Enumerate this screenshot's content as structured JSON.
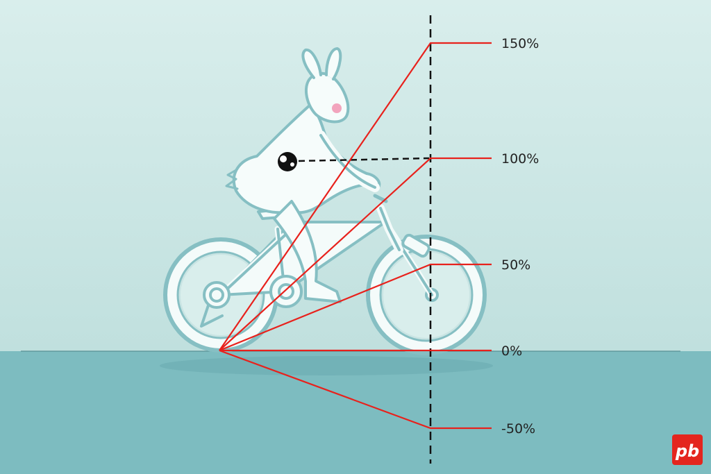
{
  "diagram": {
    "levels": [
      {
        "label": "150%"
      },
      {
        "label": "100%"
      },
      {
        "label": "50%"
      },
      {
        "label": "0%"
      },
      {
        "label": "-50%"
      }
    ]
  },
  "logo": {
    "text": "pb"
  },
  "colors": {
    "sky_top": "#d7ecea",
    "sky_bottom": "#c2e1df",
    "ground": "#7dbcc0",
    "ray": "#e8211c",
    "bike": "#8cc3c6",
    "logo_bg": "#e4251e"
  },
  "icons": {
    "center_of_mass": "center-of-mass-icon",
    "rider": "bunny-rider-illustration"
  }
}
